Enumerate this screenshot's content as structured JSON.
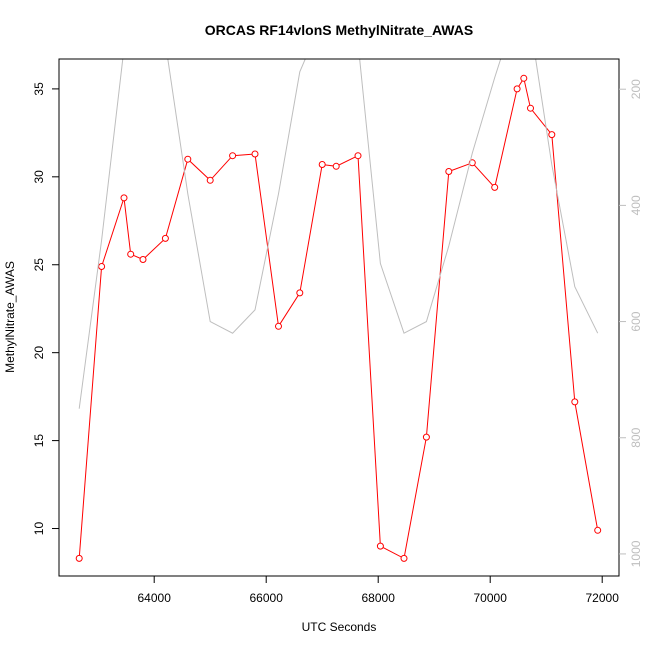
{
  "chart_data": {
    "type": "line",
    "title": "ORCAS RF14vlonS MethylNitrate_AWAS",
    "xlabel": "UTC Seconds",
    "ylabel": "MethylNitrate_AWAS",
    "xlim": [
      62300,
      72300
    ],
    "ylim": [
      7.3,
      36.7
    ],
    "y2lim": [
      1038,
      148
    ],
    "y2_reversed": true,
    "x_ticks": [
      64000,
      66000,
      68000,
      70000,
      72000
    ],
    "y_ticks": [
      10,
      15,
      20,
      25,
      30,
      35
    ],
    "y2_ticks": [
      200,
      400,
      600,
      800,
      1000
    ],
    "series": [
      {
        "axis": "left",
        "color": "#ff0000",
        "markers": "open-circle",
        "x": [
          62660,
          63060,
          63460,
          63580,
          63800,
          64200,
          64600,
          65000,
          65400,
          65800,
          66220,
          66600,
          67000,
          67250,
          67640,
          68040,
          68460,
          68860,
          69260,
          69680,
          70080,
          70480,
          70600,
          70720,
          71100,
          71510,
          71920
        ],
        "y": [
          8.3,
          24.9,
          28.8,
          25.6,
          25.3,
          26.5,
          31.0,
          29.8,
          31.2,
          31.3,
          21.5,
          23.4,
          30.7,
          30.6,
          31.2,
          9.0,
          8.3,
          15.2,
          30.3,
          30.8,
          29.4,
          35.0,
          35.6,
          33.9,
          32.4,
          17.2,
          9.9
        ]
      },
      {
        "axis": "right",
        "color": "#bebebe",
        "markers": "none",
        "x": [
          62660,
          63060,
          63460,
          63800,
          64200,
          64600,
          65000,
          65400,
          65800,
          66220,
          66600,
          67000,
          67250,
          67640,
          68040,
          68460,
          68860,
          69260,
          69680,
          70080,
          70480,
          70720,
          71100,
          71510,
          71920
        ],
        "y": [
          750,
          460,
          130,
          120,
          120,
          380,
          600,
          620,
          580,
          380,
          170,
          80,
          80,
          120,
          500,
          620,
          600,
          470,
          310,
          180,
          60,
          90,
          330,
          540,
          620
        ]
      }
    ]
  }
}
